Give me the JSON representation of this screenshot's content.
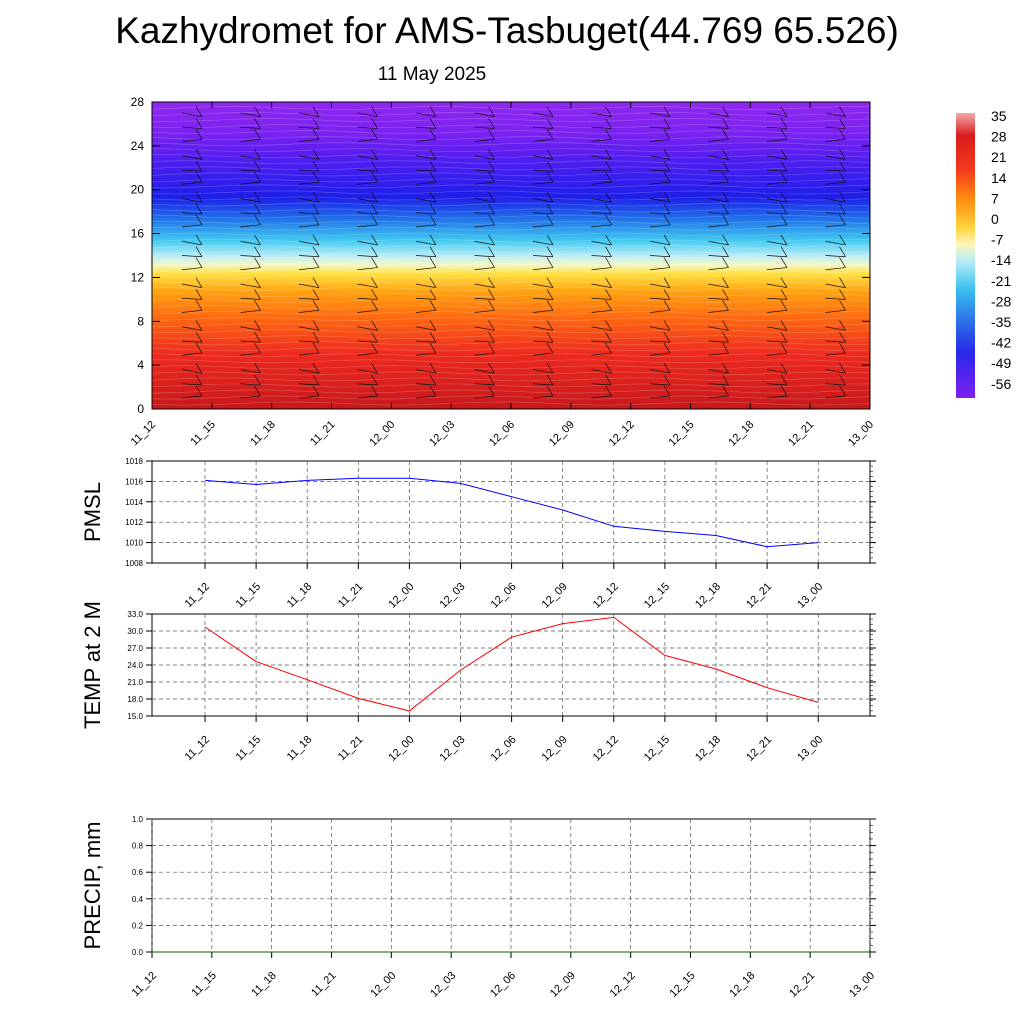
{
  "title": "Kazhydromet for AMS-Tasbuget(44.769 65.526)",
  "subtitle": "11 May 2025",
  "chart_data": [
    {
      "type": "heatmap",
      "yticks": [
        "0",
        "4",
        "8",
        "12",
        "16",
        "20",
        "24",
        "28"
      ],
      "ylim": [
        0,
        28
      ],
      "xticks": [
        "11_12",
        "11_15",
        "11_18",
        "11_21",
        "12_00",
        "12_03",
        "12_06",
        "12_09",
        "12_12",
        "12_15",
        "12_18",
        "12_21",
        "13_00"
      ],
      "colorbar": {
        "labels": [
          "35",
          "28",
          "21",
          "14",
          "7",
          "0",
          "-7",
          "-14",
          "-21",
          "-28",
          "-35",
          "-42",
          "-49",
          "-56"
        ]
      },
      "wind_barbs": true
    },
    {
      "type": "line",
      "ylabel": "PMSL",
      "yticks": [
        "1008",
        "1010",
        "1012",
        "1014",
        "1016",
        "1018"
      ],
      "ylim": [
        1008,
        1018
      ],
      "grid": true,
      "categories": [
        "11_12",
        "11_15",
        "11_18",
        "11_21",
        "12_00",
        "12_03",
        "12_06",
        "12_09",
        "12_12",
        "12_15",
        "12_18",
        "12_21",
        "13_00"
      ],
      "values": [
        1016.1,
        1015.7,
        1016.1,
        1016.3,
        1016.3,
        1015.8,
        1014.5,
        1013.2,
        1011.6,
        1011.1,
        1010.7,
        1009.6,
        1010.0
      ],
      "color": "#0000ff"
    },
    {
      "type": "line",
      "ylabel": "TEMP at 2 M",
      "yticks": [
        "15.0",
        "18.0",
        "21.0",
        "24.0",
        "27.0",
        "30.0",
        "33.0"
      ],
      "ylim": [
        15,
        33
      ],
      "grid": true,
      "categories": [
        "11_12",
        "11_15",
        "11_18",
        "11_21",
        "12_00",
        "12_03",
        "12_06",
        "12_09",
        "12_12",
        "12_15",
        "12_18",
        "12_21",
        "13_00"
      ],
      "values": [
        30.7,
        24.6,
        21.4,
        18.1,
        15.9,
        23.1,
        28.9,
        31.3,
        32.4,
        25.7,
        23.3,
        20.0,
        17.4
      ],
      "color": "#ff0000"
    },
    {
      "type": "line",
      "ylabel": "PRECIP, mm",
      "yticks": [
        "0.0",
        "0.2",
        "0.4",
        "0.6",
        "0.8",
        "1.0"
      ],
      "ylim": [
        0,
        1
      ],
      "grid": true,
      "categories": [
        "11_12",
        "11_15",
        "11_18",
        "11_21",
        "12_00",
        "12_03",
        "12_06",
        "12_09",
        "12_12",
        "12_15",
        "12_18",
        "12_21",
        "13_00"
      ],
      "values": [
        0,
        0,
        0,
        0,
        0,
        0,
        0,
        0,
        0,
        0,
        0,
        0,
        0
      ],
      "color": "#006400"
    }
  ]
}
